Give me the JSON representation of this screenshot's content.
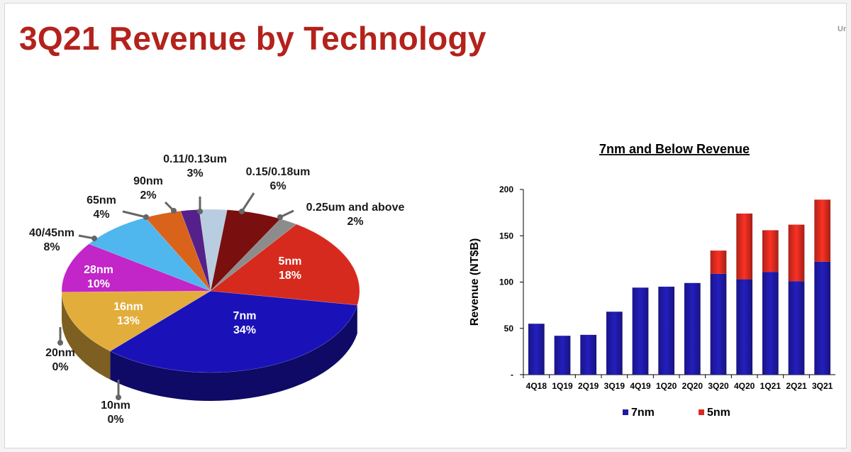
{
  "slide": {
    "title": "3Q21 Revenue by Technology",
    "corner_text": "Un"
  },
  "chart_data": [
    {
      "type": "pie",
      "title": "",
      "slices": [
        {
          "label": "7nm",
          "value": 34,
          "display": "34%",
          "color": "#1a12b8"
        },
        {
          "label": "16nm",
          "value": 13,
          "display": "13%",
          "color": "#e3ad3c"
        },
        {
          "label": "20nm",
          "value": 0,
          "display": "0%",
          "color": "#b8902b"
        },
        {
          "label": "10nm",
          "value": 0,
          "display": "0%",
          "color": "#0c0a6e"
        },
        {
          "label": "28nm",
          "value": 10,
          "display": "10%",
          "color": "#c225c8"
        },
        {
          "label": "40/45nm",
          "value": 8,
          "display": "8%",
          "color": "#4fb6ee"
        },
        {
          "label": "65nm",
          "value": 4,
          "display": "4%",
          "color": "#d9631b"
        },
        {
          "label": "90nm",
          "value": 2,
          "display": "2%",
          "color": "#55208a"
        },
        {
          "label": "0.11/0.13um",
          "value": 3,
          "display": "3%",
          "color": "#b9cde0"
        },
        {
          "label": "0.15/0.18um",
          "value": 6,
          "display": "6%",
          "color": "#7a0f0f"
        },
        {
          "label": "0.25um and above",
          "value": 2,
          "display": "2%",
          "color": "#8c8c8c"
        },
        {
          "label": "5nm",
          "value": 18,
          "display": "18%",
          "color": "#d62a1e"
        }
      ]
    },
    {
      "type": "bar",
      "stacked": true,
      "title": "7nm and Below Revenue",
      "xlabel": "",
      "ylabel": "Revenue (NT$B)",
      "ylim": [
        0,
        200
      ],
      "yticks": [
        {
          "value": 0,
          "label": "-"
        },
        {
          "value": 50,
          "label": "50"
        },
        {
          "value": 100,
          "label": "100"
        },
        {
          "value": 150,
          "label": "150"
        },
        {
          "value": 200,
          "label": "200"
        }
      ],
      "categories": [
        "4Q18",
        "1Q19",
        "2Q19",
        "3Q19",
        "4Q19",
        "1Q20",
        "2Q20",
        "3Q20",
        "4Q20",
        "1Q21",
        "2Q21",
        "3Q21"
      ],
      "series": [
        {
          "name": "7nm",
          "color": "#1f1aa6",
          "values": [
            55,
            42,
            43,
            68,
            94,
            95,
            99,
            109,
            103,
            111,
            101,
            122
          ]
        },
        {
          "name": "5nm",
          "color": "#da2b1f",
          "values": [
            0,
            0,
            0,
            0,
            0,
            0,
            0,
            25,
            71,
            45,
            61,
            67
          ]
        }
      ],
      "legend": "bottom",
      "grid": false
    }
  ]
}
